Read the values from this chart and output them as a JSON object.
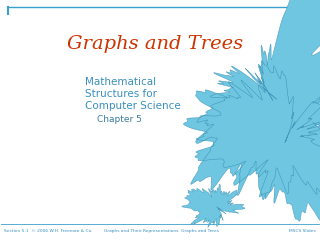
{
  "title": "Graphs and Trees",
  "title_color": "#cc3300",
  "subtitle_line1": "Mathematical",
  "subtitle_line2": "Structures for",
  "subtitle_line3": "Computer Science",
  "subtitle_line4": "Chapter 5",
  "subtitle_color": "#3a8fbf",
  "chapter_color": "#3a7aa0",
  "footer_left": "Section 5.1  © 2006 W.H. Freeman & Co.",
  "footer_center": "Graphs and Their Representations  Graphs and Trees",
  "footer_right": "MSCS Slides",
  "footer_color": "#3a8fbf",
  "top_bar_color": "#3a9fcc",
  "bg_color": "#ffffff",
  "fractal_fill": "#6ec6e0",
  "fractal_edge": "#2e86b0"
}
